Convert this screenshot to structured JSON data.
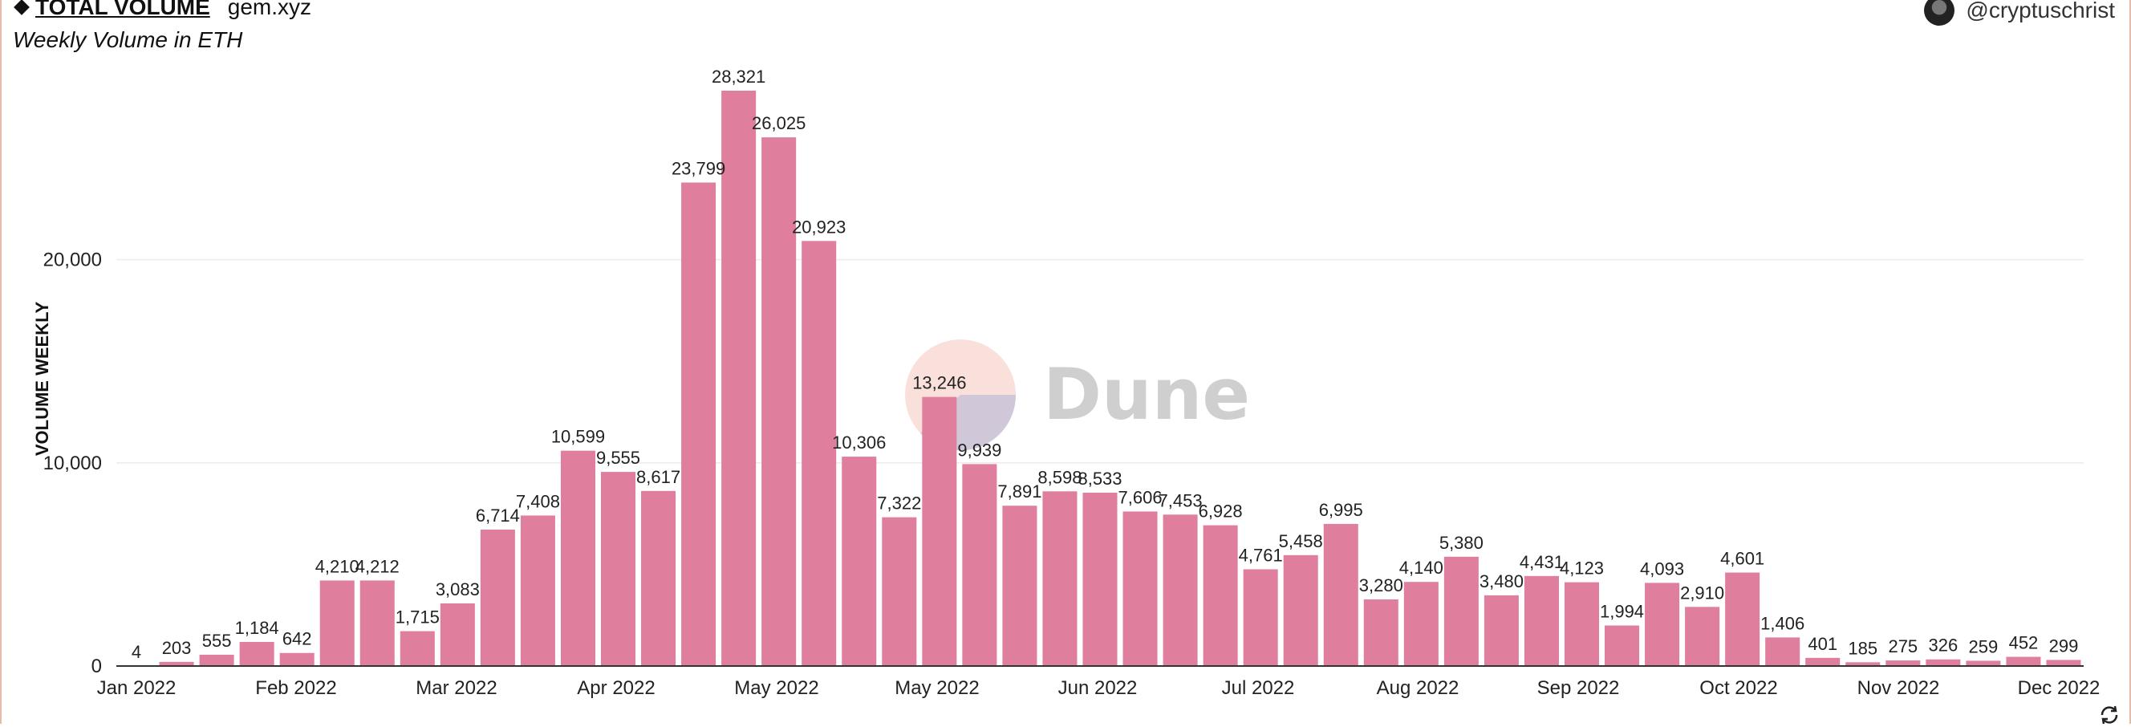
{
  "header": {
    "title": "TOTAL VOLUME",
    "site": "gem.xyz",
    "subtitle": "Weekly Volume in ETH",
    "user": "@cryptuschrist"
  },
  "watermark": {
    "text": "Dune"
  },
  "colors": {
    "bar": "#e07f9d",
    "grid": "#ececec",
    "axis": "#333333"
  },
  "chart_data": {
    "type": "bar",
    "ylabel": "VOLUME WEEKLY",
    "ylim": [
      0,
      30000
    ],
    "yticks": [
      0,
      10000,
      20000
    ],
    "ytick_labels": [
      "0",
      "10,000",
      "20,000"
    ],
    "x_tick_labels": [
      "Jan 2022",
      "Feb 2022",
      "Mar 2022",
      "Apr 2022",
      "May 2022",
      "May 2022",
      "Jun 2022",
      "Jul 2022",
      "Aug 2022",
      "Sep 2022",
      "Oct 2022",
      "Nov 2022",
      "Dec 2022"
    ],
    "values": [
      4,
      203,
      555,
      1184,
      642,
      4210,
      4212,
      1715,
      3083,
      6714,
      7408,
      10599,
      9555,
      8617,
      23799,
      28321,
      26025,
      20923,
      10306,
      7322,
      13246,
      9939,
      7891,
      8598,
      8533,
      7606,
      7453,
      6928,
      4761,
      5458,
      6995,
      3280,
      4140,
      5380,
      3480,
      4431,
      4123,
      1994,
      4093,
      2910,
      4601,
      1406,
      401,
      185,
      275,
      326,
      259,
      452,
      299
    ],
    "labels": [
      "4",
      "203",
      "555",
      "1,184",
      "642",
      "4,210",
      "4,212",
      "1,715",
      "3,083",
      "6,714",
      "7,408",
      "10,599",
      "9,555",
      "8,617",
      "23,799",
      "28,321",
      "26,025",
      "20,923",
      "10,306",
      "7,322",
      "13,246",
      "9,939",
      "7,891",
      "8,598",
      "8,533",
      "7,606",
      "7,453",
      "6,928",
      "4,761",
      "5,458",
      "6,995",
      "3,280",
      "4,140",
      "5,380",
      "3,480",
      "4,431",
      "4,123",
      "1,994",
      "4,093",
      "2,910",
      "4,601",
      "1,406",
      "401",
      "185",
      "275",
      "326",
      "259",
      "452",
      "299"
    ],
    "grid": true
  }
}
